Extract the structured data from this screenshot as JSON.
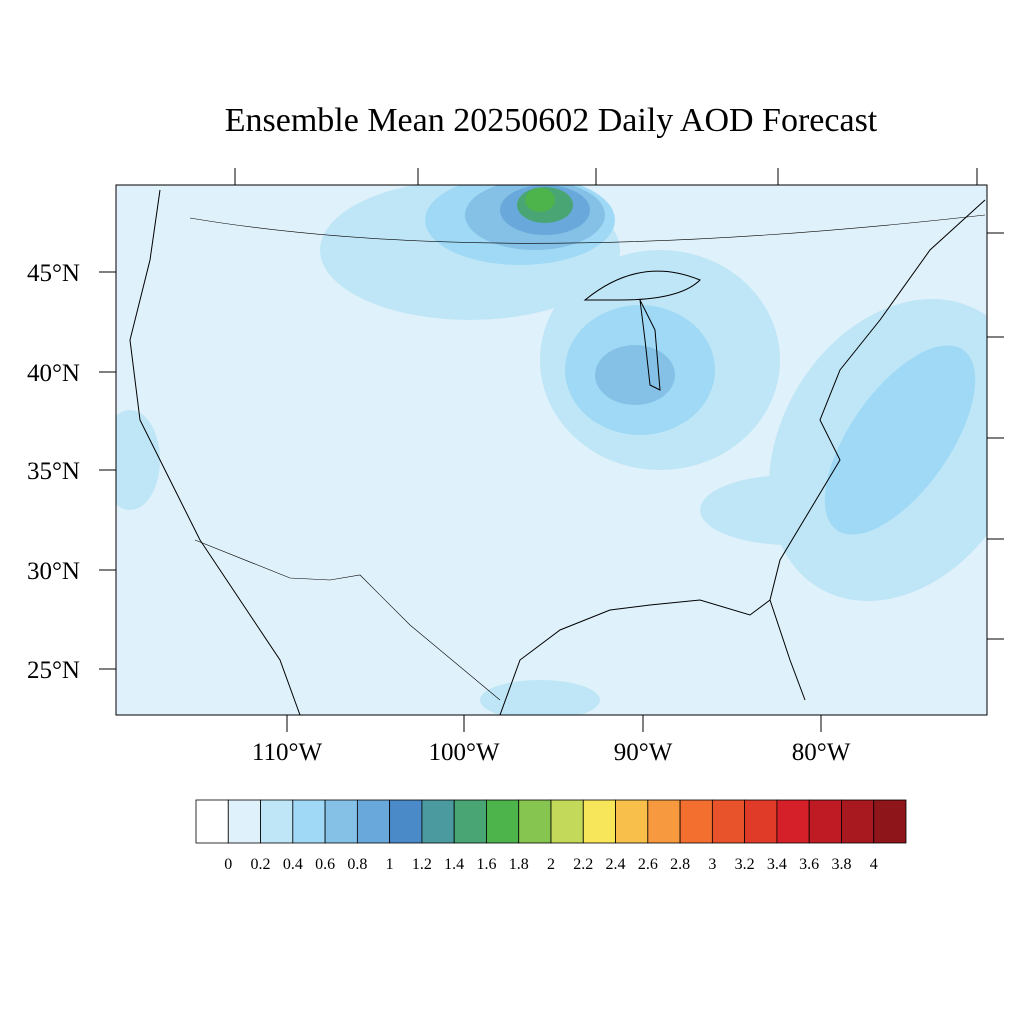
{
  "title": "Ensemble Mean 20250602 Daily AOD Forecast",
  "latitude_labels": [
    "45°N",
    "40°N",
    "35°N",
    "30°N",
    "25°N"
  ],
  "longitude_labels": [
    "110°W",
    "100°W",
    "90°W",
    "80°W"
  ],
  "colorbar": {
    "levels": [
      0,
      0.2,
      0.4,
      0.6,
      0.8,
      1,
      1.2,
      1.4,
      1.6,
      1.8,
      2,
      2.2,
      2.4,
      2.6,
      2.8,
      3,
      3.2,
      3.4,
      3.6,
      3.8,
      4
    ],
    "colors": [
      "#ffffff",
      "#dff1fa",
      "#bfe6f7",
      "#9fd9f5",
      "#85c1e6",
      "#69a8da",
      "#4a8ac9",
      "#4a9a9f",
      "#4aa574",
      "#4db34b",
      "#86c54f",
      "#c2d95a",
      "#f7e65a",
      "#f8c04b",
      "#f6993f",
      "#f36f2f",
      "#e9532b",
      "#e03a28",
      "#d52029",
      "#be1b24",
      "#a8181f",
      "#8e151a"
    ]
  }
}
